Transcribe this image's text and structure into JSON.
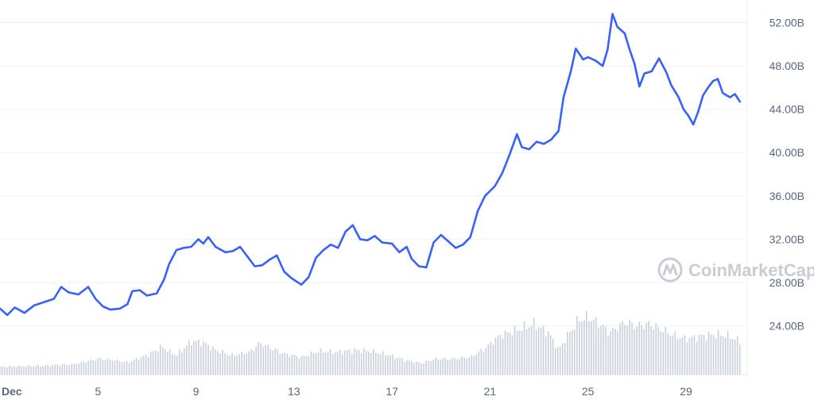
{
  "chart_data": {
    "type": "line",
    "title": "",
    "xlabel": "",
    "ylabel": "",
    "watermark": "CoinMarketCap",
    "colors": {
      "line": "#3861fb",
      "volume": "#c9cfdb",
      "grid": "#eff2f5",
      "tick_text": "#58667e",
      "watermark": "#c8ccd3"
    },
    "y_axis": {
      "position": "right",
      "ylim": [
        19.5,
        53.5
      ],
      "ticks": [
        24,
        28,
        32,
        36,
        40,
        44,
        48,
        52
      ],
      "tick_labels": [
        "24.00B",
        "28.00B",
        "32.00B",
        "36.00B",
        "40.00B",
        "44.00B",
        "48.00B",
        "52.00B"
      ]
    },
    "x_axis": {
      "xlim": [
        1,
        31.5
      ],
      "ticks": [
        1,
        5,
        9,
        13,
        17,
        21,
        25,
        29
      ],
      "tick_labels": [
        "Dec",
        "5",
        "9",
        "13",
        "17",
        "21",
        "25",
        "29"
      ]
    },
    "grid": true,
    "series": [
      {
        "values_unit": "B",
        "points": [
          [
            1.0,
            25.6
          ],
          [
            1.3,
            25.0
          ],
          [
            1.6,
            25.7
          ],
          [
            2.0,
            25.2
          ],
          [
            2.4,
            25.9
          ],
          [
            2.8,
            26.2
          ],
          [
            3.2,
            26.5
          ],
          [
            3.5,
            27.6
          ],
          [
            3.8,
            27.1
          ],
          [
            4.2,
            26.9
          ],
          [
            4.6,
            27.6
          ],
          [
            4.9,
            26.5
          ],
          [
            5.2,
            25.8
          ],
          [
            5.5,
            25.5
          ],
          [
            5.9,
            25.6
          ],
          [
            6.2,
            26.0
          ],
          [
            6.4,
            27.2
          ],
          [
            6.7,
            27.3
          ],
          [
            7.0,
            26.8
          ],
          [
            7.4,
            27.0
          ],
          [
            7.7,
            28.3
          ],
          [
            7.9,
            29.7
          ],
          [
            8.2,
            31.0
          ],
          [
            8.5,
            31.2
          ],
          [
            8.8,
            31.3
          ],
          [
            9.1,
            32.0
          ],
          [
            9.3,
            31.6
          ],
          [
            9.5,
            32.2
          ],
          [
            9.8,
            31.3
          ],
          [
            10.2,
            30.8
          ],
          [
            10.5,
            30.9
          ],
          [
            10.8,
            31.3
          ],
          [
            11.1,
            30.4
          ],
          [
            11.4,
            29.5
          ],
          [
            11.7,
            29.6
          ],
          [
            12.0,
            30.1
          ],
          [
            12.3,
            30.5
          ],
          [
            12.6,
            29.0
          ],
          [
            12.9,
            28.4
          ],
          [
            13.3,
            27.8
          ],
          [
            13.6,
            28.5
          ],
          [
            13.9,
            30.3
          ],
          [
            14.2,
            31.0
          ],
          [
            14.5,
            31.5
          ],
          [
            14.8,
            31.2
          ],
          [
            15.1,
            32.7
          ],
          [
            15.4,
            33.3
          ],
          [
            15.7,
            32.0
          ],
          [
            16.0,
            31.9
          ],
          [
            16.3,
            32.3
          ],
          [
            16.6,
            31.7
          ],
          [
            17.0,
            31.6
          ],
          [
            17.3,
            30.8
          ],
          [
            17.6,
            31.3
          ],
          [
            17.8,
            30.2
          ],
          [
            18.1,
            29.5
          ],
          [
            18.4,
            29.4
          ],
          [
            18.7,
            31.7
          ],
          [
            19.0,
            32.4
          ],
          [
            19.3,
            31.8
          ],
          [
            19.6,
            31.2
          ],
          [
            19.9,
            31.5
          ],
          [
            20.2,
            32.2
          ],
          [
            20.5,
            34.6
          ],
          [
            20.8,
            36.0
          ],
          [
            21.2,
            36.9
          ],
          [
            21.5,
            38.1
          ],
          [
            21.8,
            39.8
          ],
          [
            22.1,
            41.7
          ],
          [
            22.3,
            40.5
          ],
          [
            22.6,
            40.3
          ],
          [
            22.9,
            41.0
          ],
          [
            23.2,
            40.8
          ],
          [
            23.5,
            41.2
          ],
          [
            23.8,
            42.0
          ],
          [
            24.0,
            45.1
          ],
          [
            24.3,
            47.5
          ],
          [
            24.5,
            49.6
          ],
          [
            24.8,
            48.6
          ],
          [
            25.0,
            48.8
          ],
          [
            25.3,
            48.5
          ],
          [
            25.6,
            48.0
          ],
          [
            25.8,
            49.5
          ],
          [
            26.0,
            52.8
          ],
          [
            26.2,
            51.6
          ],
          [
            26.5,
            51.0
          ],
          [
            26.7,
            49.5
          ],
          [
            26.9,
            48.2
          ],
          [
            27.1,
            46.1
          ],
          [
            27.3,
            47.3
          ],
          [
            27.6,
            47.5
          ],
          [
            27.9,
            48.7
          ],
          [
            28.2,
            47.4
          ],
          [
            28.4,
            46.2
          ],
          [
            28.7,
            45.1
          ],
          [
            28.9,
            44.0
          ],
          [
            29.1,
            43.4
          ],
          [
            29.3,
            42.6
          ],
          [
            29.5,
            43.8
          ],
          [
            29.7,
            45.3
          ],
          [
            29.9,
            46.0
          ],
          [
            30.1,
            46.6
          ],
          [
            30.3,
            46.8
          ],
          [
            30.5,
            45.5
          ],
          [
            30.8,
            45.1
          ],
          [
            31.0,
            45.4
          ],
          [
            31.2,
            44.7
          ]
        ]
      }
    ],
    "volume_series": {
      "relative_level": [
        [
          1.0,
          0.09
        ],
        [
          2.5,
          0.1
        ],
        [
          4.0,
          0.12
        ],
        [
          5.0,
          0.18
        ],
        [
          5.6,
          0.17
        ],
        [
          6.2,
          0.14
        ],
        [
          7.0,
          0.22
        ],
        [
          7.6,
          0.32
        ],
        [
          8.2,
          0.22
        ],
        [
          8.8,
          0.38
        ],
        [
          9.3,
          0.37
        ],
        [
          9.8,
          0.28
        ],
        [
          10.5,
          0.22
        ],
        [
          11.2,
          0.26
        ],
        [
          11.6,
          0.36
        ],
        [
          12.1,
          0.3
        ],
        [
          12.6,
          0.24
        ],
        [
          13.3,
          0.2
        ],
        [
          14.0,
          0.27
        ],
        [
          14.7,
          0.26
        ],
        [
          15.4,
          0.28
        ],
        [
          16.1,
          0.27
        ],
        [
          16.8,
          0.23
        ],
        [
          17.5,
          0.17
        ],
        [
          18.2,
          0.13
        ],
        [
          18.8,
          0.18
        ],
        [
          19.5,
          0.18
        ],
        [
          20.2,
          0.2
        ],
        [
          20.8,
          0.3
        ],
        [
          21.4,
          0.45
        ],
        [
          22.0,
          0.5
        ],
        [
          22.8,
          0.58
        ],
        [
          23.4,
          0.48
        ],
        [
          23.8,
          0.28
        ],
        [
          24.1,
          0.42
        ],
        [
          24.6,
          0.62
        ],
        [
          25.0,
          0.66
        ],
        [
          25.5,
          0.58
        ],
        [
          25.9,
          0.48
        ],
        [
          26.5,
          0.6
        ],
        [
          27.0,
          0.56
        ],
        [
          27.5,
          0.58
        ],
        [
          28.0,
          0.52
        ],
        [
          28.6,
          0.44
        ],
        [
          29.0,
          0.41
        ],
        [
          29.6,
          0.44
        ],
        [
          30.2,
          0.46
        ],
        [
          30.7,
          0.45
        ],
        [
          31.2,
          0.38
        ]
      ]
    }
  }
}
